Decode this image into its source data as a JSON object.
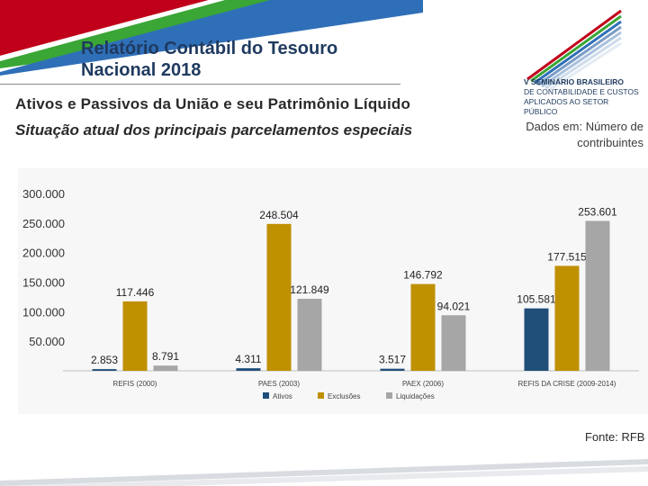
{
  "header": {
    "title_bold": "Relatório Contábil",
    "title_rest": " do Tesouro",
    "title_line2": "Nacional 2018",
    "subtitle_1": "Ativos e Passivos da União e seu Patrimônio Líquido",
    "subtitle_2": "Situação atual dos principais parcelamentos especiais"
  },
  "logo": {
    "line1": "V SEMINÁRIO BRASILEIRO",
    "line2": "DE CONTABILIDADE E CUSTOS",
    "line3": "APLICADOS AO SETOR PÚBLICO"
  },
  "note": {
    "text": "Dados em: Número de contribuintes"
  },
  "footer": {
    "source": "Fonte: RFB"
  },
  "colors": {
    "ativos": "#1f4e79",
    "exclusoes": "#bf9000",
    "liquidacoes": "#a6a6a6",
    "title": "#1f3a5f",
    "accent_red": "#c0001a",
    "accent_green": "#3aa635",
    "accent_blue": "#2f6fb8"
  },
  "chart_data": {
    "type": "bar",
    "title": "",
    "xlabel": "",
    "ylabel": "",
    "ylim": [
      0,
      300000
    ],
    "yticks": [
      50000,
      100000,
      150000,
      200000,
      250000,
      300000
    ],
    "ytick_labels": [
      "50.000",
      "100.000",
      "150.000",
      "200.000",
      "250.000",
      "300.000"
    ],
    "categories": [
      "REFIS (2000)",
      "PAES (2003)",
      "PAEX (2006)",
      "REFIS DA CRISE (2009-2014)"
    ],
    "series": [
      {
        "name": "Ativos",
        "values": [
          2853,
          4311,
          3517,
          105581
        ],
        "labels": [
          "2.853",
          "4.311",
          "3.517",
          "105.581"
        ]
      },
      {
        "name": "Exclusões",
        "values": [
          117446,
          248504,
          146792,
          177515
        ],
        "labels": [
          "117.446",
          "248.504",
          "146.792",
          "177.515"
        ]
      },
      {
        "name": "Liquidações",
        "values": [
          8791,
          121849,
          94021,
          253601
        ],
        "labels": [
          "8.791",
          "121.849",
          "94.021",
          "253.601"
        ]
      }
    ],
    "legend": "bottom-center",
    "grid": false
  }
}
